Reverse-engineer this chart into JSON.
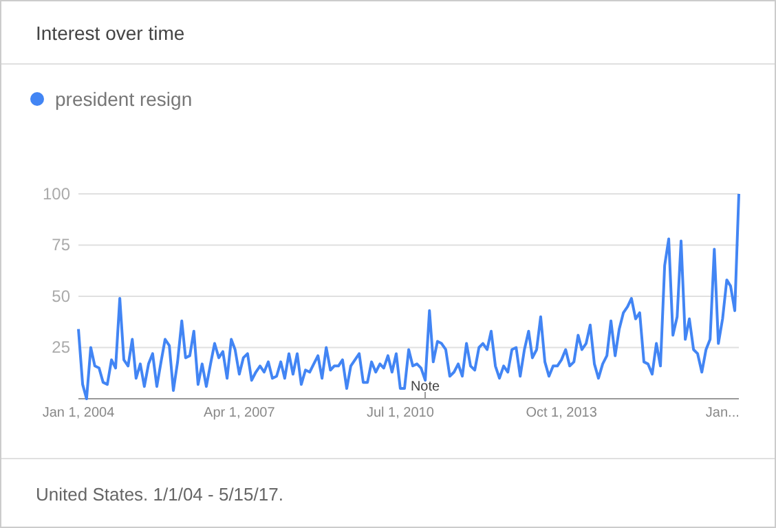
{
  "chart_data": {
    "type": "line",
    "title": "Interest over time",
    "x": [
      "2004-01",
      "2004-02",
      "2004-03",
      "2004-04",
      "2004-05",
      "2004-06",
      "2004-07",
      "2004-08",
      "2004-09",
      "2004-10",
      "2004-11",
      "2004-12",
      "2005-01",
      "2005-02",
      "2005-03",
      "2005-04",
      "2005-05",
      "2005-06",
      "2005-07",
      "2005-08",
      "2005-09",
      "2005-10",
      "2005-11",
      "2005-12",
      "2006-01",
      "2006-02",
      "2006-03",
      "2006-04",
      "2006-05",
      "2006-06",
      "2006-07",
      "2006-08",
      "2006-09",
      "2006-10",
      "2006-11",
      "2006-12",
      "2007-01",
      "2007-02",
      "2007-03",
      "2007-04",
      "2007-05",
      "2007-06",
      "2007-07",
      "2007-08",
      "2007-09",
      "2007-10",
      "2007-11",
      "2007-12",
      "2008-01",
      "2008-02",
      "2008-03",
      "2008-04",
      "2008-05",
      "2008-06",
      "2008-07",
      "2008-08",
      "2008-09",
      "2008-10",
      "2008-11",
      "2008-12",
      "2009-01",
      "2009-02",
      "2009-03",
      "2009-04",
      "2009-05",
      "2009-06",
      "2009-07",
      "2009-08",
      "2009-09",
      "2009-10",
      "2009-11",
      "2009-12",
      "2010-01",
      "2010-02",
      "2010-03",
      "2010-04",
      "2010-05",
      "2010-06",
      "2010-07",
      "2010-08",
      "2010-09",
      "2010-10",
      "2010-11",
      "2010-12",
      "2011-01",
      "2011-02",
      "2011-03",
      "2011-04",
      "2011-05",
      "2011-06",
      "2011-07",
      "2011-08",
      "2011-09",
      "2011-10",
      "2011-11",
      "2011-12",
      "2012-01",
      "2012-02",
      "2012-03",
      "2012-04",
      "2012-05",
      "2012-06",
      "2012-07",
      "2012-08",
      "2012-09",
      "2012-10",
      "2012-11",
      "2012-12",
      "2013-01",
      "2013-02",
      "2013-03",
      "2013-04",
      "2013-05",
      "2013-06",
      "2013-07",
      "2013-08",
      "2013-09",
      "2013-10",
      "2013-11",
      "2013-12",
      "2014-01",
      "2014-02",
      "2014-03",
      "2014-04",
      "2014-05",
      "2014-06",
      "2014-07",
      "2014-08",
      "2014-09",
      "2014-10",
      "2014-11",
      "2014-12",
      "2015-01",
      "2015-02",
      "2015-03",
      "2015-04",
      "2015-05",
      "2015-06",
      "2015-07",
      "2015-08",
      "2015-09",
      "2015-10",
      "2015-11",
      "2015-12",
      "2016-01",
      "2016-02",
      "2016-03",
      "2016-04",
      "2016-05",
      "2016-06",
      "2016-07",
      "2016-08",
      "2016-09",
      "2016-10",
      "2016-11",
      "2016-12",
      "2017-01",
      "2017-02",
      "2017-03",
      "2017-04",
      "2017-05"
    ],
    "series": [
      {
        "name": "president resign",
        "color": "#4285f4",
        "values": [
          34,
          7,
          0,
          25,
          16,
          15,
          8,
          7,
          19,
          15,
          49,
          19,
          16,
          29,
          10,
          17,
          6,
          17,
          22,
          6,
          18,
          29,
          26,
          4,
          18,
          38,
          20,
          21,
          33,
          7,
          17,
          6,
          17,
          27,
          20,
          23,
          10,
          29,
          24,
          12,
          20,
          22,
          9,
          13,
          16,
          13,
          18,
          10,
          11,
          18,
          10,
          22,
          12,
          22,
          7,
          14,
          13,
          17,
          21,
          10,
          25,
          14,
          16,
          16,
          19,
          5,
          16,
          19,
          22,
          8,
          8,
          18,
          13,
          17,
          15,
          21,
          13,
          22,
          5,
          5,
          24,
          16,
          17,
          15,
          9,
          43,
          18,
          28,
          27,
          24,
          11,
          13,
          17,
          11,
          27,
          16,
          14,
          25,
          27,
          24,
          33,
          16,
          10,
          16,
          13,
          24,
          25,
          11,
          24,
          33,
          20,
          24,
          40,
          18,
          11,
          16,
          16,
          19,
          24,
          16,
          18,
          31,
          24,
          27,
          36,
          17,
          10,
          17,
          21,
          38,
          21,
          34,
          42,
          45,
          49,
          39,
          42,
          18,
          17,
          12,
          27,
          16,
          65,
          78,
          31,
          40,
          77,
          29,
          39,
          24,
          22,
          13,
          24,
          29,
          73,
          27,
          39,
          58,
          55,
          43,
          100
        ]
      }
    ],
    "xlim": [
      "2004-01",
      "2017-05"
    ],
    "xticks": [
      {
        "value": "2004-01-01",
        "label": "Jan 1, 2004"
      },
      {
        "value": "2007-04-01",
        "label": "Apr 1, 2007"
      },
      {
        "value": "2010-07-01",
        "label": "Jul 1, 2010"
      },
      {
        "value": "2013-10-01",
        "label": "Oct 1, 2013"
      },
      {
        "value": "2017-01-01",
        "label": "Jan..."
      }
    ],
    "ylim": [
      0,
      100
    ],
    "yticks": [
      25,
      50,
      75,
      100
    ],
    "grid": "y",
    "legend": "top left",
    "line_style": "solid",
    "annotations": [
      "Note",
      "United States. 1/1/04 - 5/15/17."
    ]
  }
}
